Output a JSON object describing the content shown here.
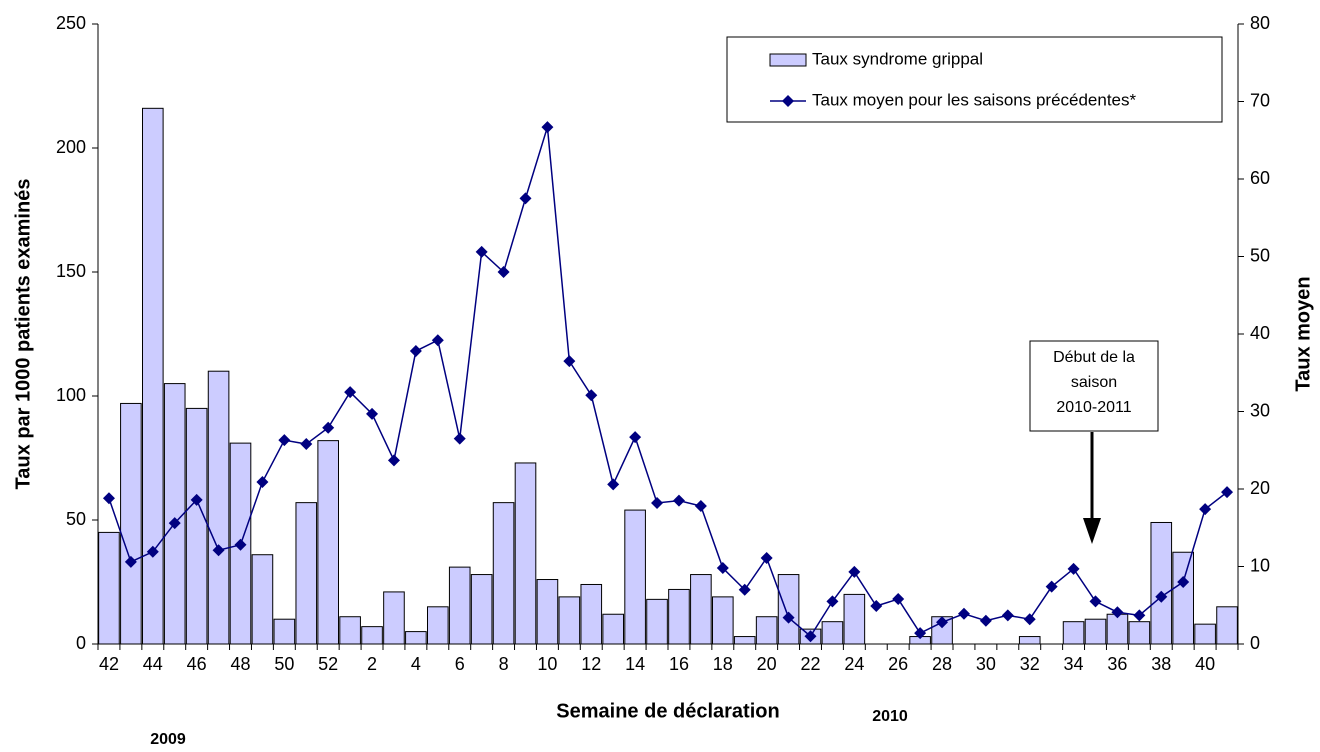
{
  "chart_data": {
    "type": "bar-line",
    "x_label": "Semaine de déclaration",
    "y_label": "Taux par 1000 patients examinés",
    "y2_label": "Taux moyen",
    "categories": [
      "42",
      null,
      "44",
      null,
      "46",
      null,
      "48",
      null,
      "50",
      null,
      "52",
      null,
      "2",
      null,
      "4",
      null,
      "6",
      null,
      "8",
      null,
      "10",
      null,
      "12",
      null,
      "14",
      null,
      "16",
      null,
      "18",
      null,
      "20",
      null,
      "22",
      null,
      "24",
      null,
      "26",
      null,
      "28",
      null,
      "30",
      null,
      "32",
      null,
      "34",
      null,
      "36",
      null,
      "38",
      null,
      "40",
      null
    ],
    "series": [
      {
        "name": "Taux syndrome grippal",
        "type": "bar",
        "color": "#ccccff",
        "values": [
          45,
          97,
          216,
          105,
          95,
          110,
          81,
          36,
          10,
          57,
          82,
          11,
          7,
          21,
          5,
          15,
          31,
          28,
          57,
          73,
          26,
          19,
          24,
          12,
          54,
          18,
          22,
          28,
          19,
          3,
          11,
          28,
          6,
          9,
          20,
          0,
          0,
          3,
          11,
          0,
          0,
          0,
          3,
          0,
          9,
          10,
          12,
          9,
          49,
          37,
          8,
          15
        ]
      },
      {
        "name": "Taux moyen pour les saisons précédentes*",
        "type": "line",
        "axis": "y2",
        "color": "#000080",
        "values": [
          18.8,
          10.6,
          11.9,
          15.6,
          18.6,
          12.1,
          12.8,
          20.9,
          26.3,
          25.8,
          27.9,
          32.5,
          29.7,
          23.7,
          37.8,
          39.2,
          26.5,
          50.6,
          48.0,
          57.5,
          66.7,
          36.5,
          32.1,
          20.6,
          26.7,
          18.2,
          18.5,
          17.8,
          9.8,
          7.0,
          11.1,
          3.4,
          1.0,
          5.5,
          9.3,
          4.9,
          5.8,
          1.4,
          2.8,
          3.9,
          3.0,
          3.7,
          3.2,
          7.4,
          9.7,
          5.5,
          4.1,
          3.7,
          6.1,
          8.0,
          17.4,
          19.6
        ]
      }
    ],
    "ylim": [
      0,
      250
    ],
    "yticks": [
      0,
      50,
      100,
      150,
      200,
      250
    ],
    "y2lim": [
      0,
      80
    ],
    "y2ticks": [
      0,
      10,
      20,
      30,
      40,
      50,
      60,
      70,
      80
    ],
    "year_labels": [
      "2009",
      "2010"
    ],
    "annotation": [
      "Début de la",
      "saison",
      "2010-2011"
    ],
    "legend": "top-right",
    "grid": false
  }
}
